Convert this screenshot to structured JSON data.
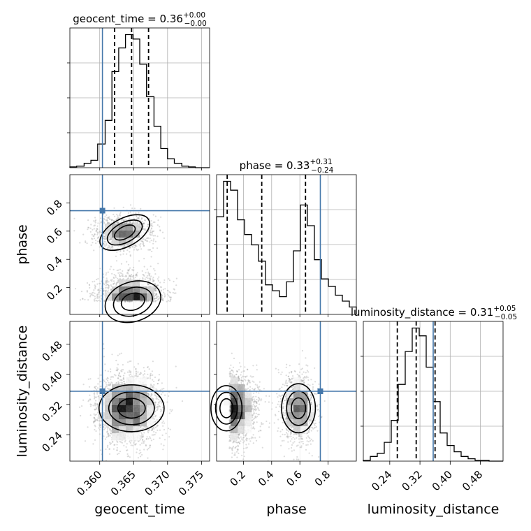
{
  "chart_data": {
    "type": "corner",
    "parameters": [
      "geocent_time",
      "phase",
      "luminosity_distance"
    ],
    "axis_labels": [
      "geocent_time",
      "phase",
      "luminosity_distance"
    ],
    "truths": {
      "geocent_time": 0.3604,
      "phase": 0.745,
      "luminosity_distance": 0.355
    },
    "ranges": {
      "geocent_time": [
        0.3556,
        0.3762
      ],
      "phase": [
        0.01,
        1.0
      ],
      "luminosity_distance": [
        0.17,
        0.54
      ]
    },
    "ticks": {
      "geocent_time": [
        "0.360",
        "0.365",
        "0.370",
        "0.375"
      ],
      "phase": [
        "0.2",
        "0.4",
        "0.6",
        "0.8"
      ],
      "luminosity_distance": [
        "0.24",
        "0.32",
        "0.40",
        "0.48"
      ]
    },
    "tick_values": {
      "geocent_time": [
        0.36,
        0.365,
        0.37,
        0.375
      ],
      "phase": [
        0.2,
        0.4,
        0.6,
        0.8
      ],
      "luminosity_distance": [
        0.24,
        0.32,
        0.4,
        0.48
      ]
    },
    "quantiles": {
      "geocent_time": [
        0.3622,
        0.3647,
        0.3672
      ],
      "phase": [
        0.085,
        0.33,
        0.64
      ],
      "luminosity_distance": [
        0.26,
        0.31,
        0.36
      ]
    },
    "titles": [
      {
        "param": "geocent_time",
        "label": "geocent_time = 0.36",
        "upper": "+0.00",
        "lower": "−0.00"
      },
      {
        "param": "phase",
        "label": "phase = 0.33",
        "upper": "+0.31",
        "lower": "−0.24"
      },
      {
        "param": "luminosity_distance",
        "label": "luminosity_distance = 0.31",
        "upper": "+0.05",
        "lower": "−0.05"
      }
    ],
    "histograms": {
      "geocent_time": {
        "bins": [
          0.3556,
          0.3566,
          0.3577,
          0.3587,
          0.3597,
          0.3608,
          0.3618,
          0.3628,
          0.3638,
          0.3649,
          0.3659,
          0.3669,
          0.368,
          0.369,
          0.37,
          0.371,
          0.3721,
          0.3731,
          0.3741,
          0.3752,
          0.3762
        ],
        "counts": [
          1,
          2,
          6,
          10,
          32,
          64,
          130,
          162,
          180,
          174,
          140,
          96,
          56,
          26,
          12,
          6,
          2,
          1,
          0,
          0
        ]
      },
      "phase": {
        "bins": [
          0.01,
          0.0595,
          0.109,
          0.1585,
          0.208,
          0.2575,
          0.307,
          0.3565,
          0.406,
          0.4555,
          0.505,
          0.5545,
          0.604,
          0.6535,
          0.703,
          0.7525,
          0.802,
          0.8515,
          0.901,
          0.9505,
          1.0
        ],
        "counts": [
          66,
          90,
          84,
          64,
          54,
          47,
          36,
          20,
          16,
          12,
          22,
          43,
          74,
          60,
          37,
          24,
          19,
          13,
          9,
          5
        ]
      },
      "luminosity_distance": {
        "bins": [
          0.17,
          0.1885,
          0.207,
          0.2255,
          0.244,
          0.2625,
          0.281,
          0.2995,
          0.318,
          0.3365,
          0.355,
          0.3735,
          0.392,
          0.4105,
          0.429,
          0.4475,
          0.466,
          0.4845,
          0.503,
          0.5215,
          0.54
        ],
        "counts": [
          1,
          6,
          10,
          24,
          52,
          98,
          140,
          170,
          160,
          120,
          76,
          36,
          20,
          12,
          6,
          3,
          1,
          1,
          0,
          0
        ]
      }
    },
    "grid": true
  }
}
